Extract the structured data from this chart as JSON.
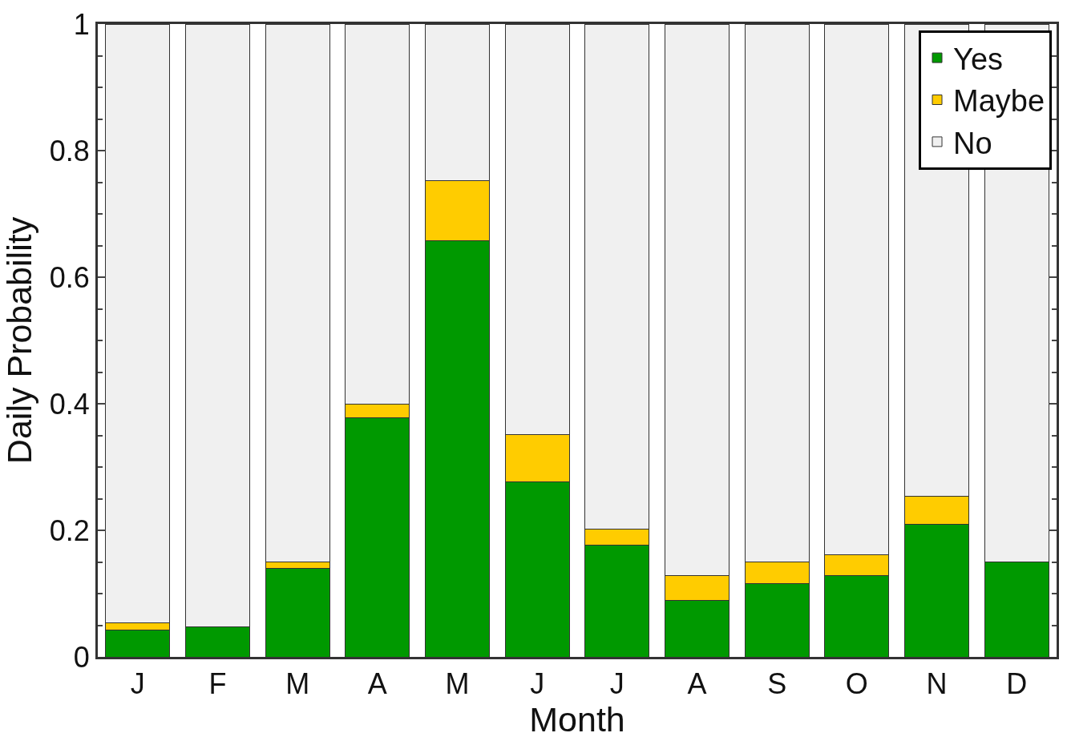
{
  "chart_data": {
    "type": "bar",
    "stacked": true,
    "xlabel": "Month",
    "ylabel": "Daily Probability",
    "categories": [
      "J",
      "F",
      "M",
      "A",
      "M",
      "J",
      "J",
      "A",
      "S",
      "O",
      "N",
      "D"
    ],
    "series": [
      {
        "name": "Yes",
        "color": "#009900",
        "values": [
          0.043,
          0.048,
          0.14,
          0.378,
          0.658,
          0.276,
          0.177,
          0.089,
          0.116,
          0.129,
          0.21,
          0.15
        ]
      },
      {
        "name": "Maybe",
        "color": "#ffcc00",
        "values": [
          0.011,
          0,
          0.01,
          0.022,
          0.095,
          0.075,
          0.025,
          0.04,
          0.034,
          0.033,
          0.044,
          0
        ]
      },
      {
        "name": "No",
        "color": "#f0f0f0",
        "values": [
          0.946,
          0.952,
          0.85,
          0.6,
          0.247,
          0.649,
          0.798,
          0.871,
          0.85,
          0.838,
          0.746,
          0.85
        ]
      }
    ],
    "ylim": [
      0,
      1
    ],
    "yticks": [
      0,
      0.2,
      0.4,
      0.6,
      0.8,
      1
    ],
    "legend": "top right"
  }
}
